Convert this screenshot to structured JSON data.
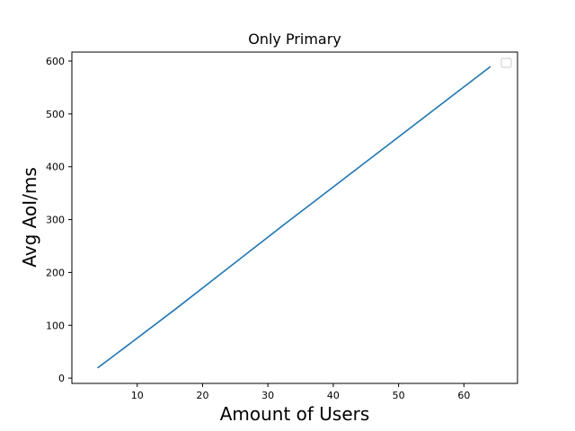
{
  "chart_data": {
    "type": "line",
    "title": "Only Primary",
    "xlabel": "Amount of Users",
    "ylabel": "Avg AoI/ms",
    "xlim": [
      0,
      68.2
    ],
    "ylim": [
      -10,
      617
    ],
    "xticks": [
      10,
      20,
      30,
      40,
      50,
      60
    ],
    "yticks": [
      0,
      100,
      200,
      300,
      400,
      500,
      600
    ],
    "grid": false,
    "legend": "top-right (empty)",
    "series": [
      {
        "color": "#1f77b4",
        "x": [
          4,
          8,
          16,
          32,
          64
        ],
        "y": [
          20,
          57,
          132,
          286,
          589
        ]
      }
    ]
  }
}
